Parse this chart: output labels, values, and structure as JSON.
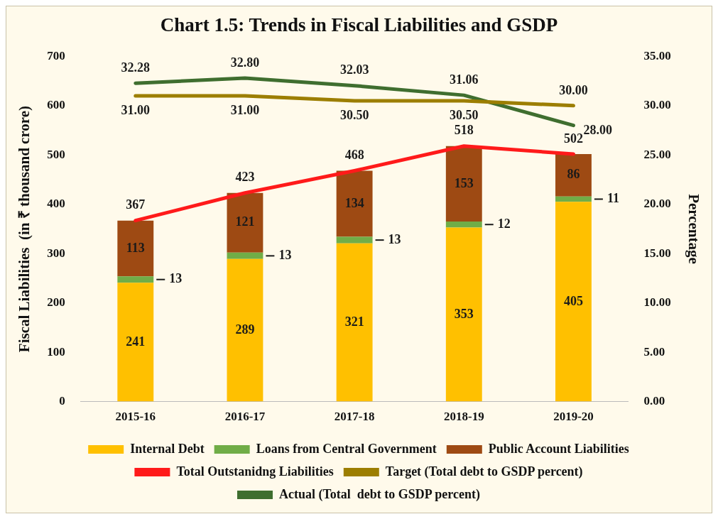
{
  "chart_data": {
    "type": "bar",
    "title": "Chart 1.5: Trends in Fiscal Liabilities and GSDP",
    "categories": [
      "2015-16",
      "2016-17",
      "2017-18",
      "2018-19",
      "2019-20"
    ],
    "stacked": true,
    "series": [
      {
        "name": "Internal Debt",
        "color": "#ffc000",
        "values": [
          241,
          289,
          321,
          353,
          405
        ]
      },
      {
        "name": "Loans from Central Government",
        "color": "#70ad47",
        "values": [
          13,
          13,
          13,
          12,
          11
        ]
      },
      {
        "name": "Public Account Liabilities",
        "color": "#9e4a13",
        "values": [
          113,
          121,
          134,
          153,
          86
        ]
      },
      {
        "name": "Total Outstanidng Liabilities",
        "type": "line",
        "color": "#ff1a1a",
        "values": [
          367,
          423,
          468,
          518,
          502
        ]
      },
      {
        "name": "Target (Total debt to GSDP percent)",
        "type": "line",
        "axis": "y2",
        "color": "#9c7e00",
        "values": [
          31.0,
          31.0,
          30.5,
          30.5,
          30.0
        ],
        "value_labels": [
          "31.00",
          "31.00",
          "30.50",
          "30.50",
          "30.00"
        ]
      },
      {
        "name": "Actual (Total  debt to GSDP percent)",
        "type": "line",
        "axis": "y2",
        "color": "#3f6e2f",
        "values": [
          32.28,
          32.8,
          32.03,
          31.06,
          28.0
        ],
        "value_labels": [
          "32.28",
          "32.80",
          "32.03",
          "31.06",
          "28.00"
        ]
      }
    ],
    "ylabel": "Fiscal Liabilities  (in ₹ thousand crore)",
    "y2label": "Percentage",
    "ylim": [
      0,
      700
    ],
    "yticks": [
      0,
      100,
      200,
      300,
      400,
      500,
      600,
      700
    ],
    "y2lim": [
      0,
      35
    ],
    "y2ticks": [
      {
        "value": 0,
        "label": "0.00"
      },
      {
        "value": 5,
        "label": "5.00"
      },
      {
        "value": 10,
        "label": "10.00"
      },
      {
        "value": 15,
        "label": "15.00"
      },
      {
        "value": 20,
        "label": "20.00"
      },
      {
        "value": 25,
        "label": "25.00"
      },
      {
        "value": 30,
        "label": "30.00"
      },
      {
        "value": 35,
        "label": "35.00"
      }
    ],
    "data_labels": true,
    "grid": false,
    "legend": "bottom",
    "marker": "none",
    "line_style": "solid"
  }
}
